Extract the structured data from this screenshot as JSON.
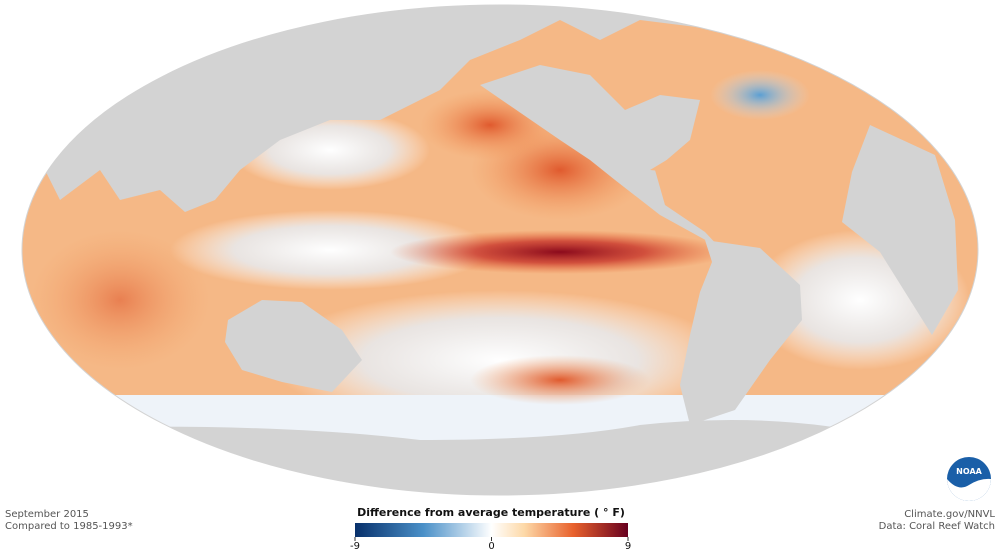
{
  "caption": {
    "date": "September 2015",
    "baseline": "Compared to 1985-1993*"
  },
  "legend": {
    "title": "Difference from average temperature ( ° F)",
    "range": [
      -9,
      9
    ],
    "ticks": [
      -9,
      0,
      9
    ]
  },
  "credits": {
    "source": "Climate.gov/NNVL",
    "data": "Data: Coral Reef Watch",
    "logo": "NOAA"
  }
}
